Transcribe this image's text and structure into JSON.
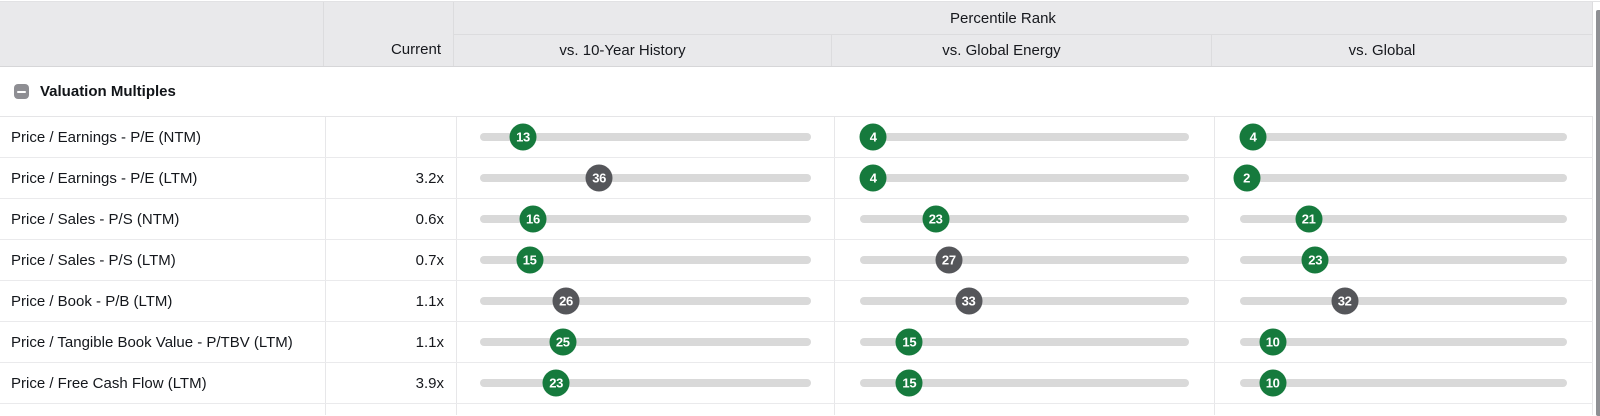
{
  "header": {
    "current_label": "Current",
    "percentile_rank_label": "Percentile Rank",
    "columns": [
      "vs. 10-Year History",
      "vs. Global Energy",
      "vs. Global"
    ]
  },
  "section": {
    "title": "Valuation Multiples",
    "collapse_icon": "minus-square-icon",
    "collapsed": false
  },
  "colors": {
    "green_badge": "#167a3d",
    "gray_badge": "#55565a",
    "track": "#d9d9d9",
    "header_bg": "#e9e9eb",
    "scrollbar": "#8f9094"
  },
  "rows": [
    {
      "label": "Price / Earnings - P/E (NTM)",
      "current": "",
      "percentiles": [
        {
          "value": 13,
          "color": "green"
        },
        {
          "value": 4,
          "color": "green"
        },
        {
          "value": 4,
          "color": "green"
        }
      ]
    },
    {
      "label": "Price / Earnings - P/E (LTM)",
      "current": "3.2x",
      "percentiles": [
        {
          "value": 36,
          "color": "gray"
        },
        {
          "value": 4,
          "color": "green"
        },
        {
          "value": 2,
          "color": "green"
        }
      ]
    },
    {
      "label": "Price / Sales - P/S (NTM)",
      "current": "0.6x",
      "percentiles": [
        {
          "value": 16,
          "color": "green"
        },
        {
          "value": 23,
          "color": "green"
        },
        {
          "value": 21,
          "color": "green"
        }
      ]
    },
    {
      "label": "Price / Sales - P/S (LTM)",
      "current": "0.7x",
      "percentiles": [
        {
          "value": 15,
          "color": "green"
        },
        {
          "value": 27,
          "color": "gray"
        },
        {
          "value": 23,
          "color": "green"
        }
      ]
    },
    {
      "label": "Price / Book - P/B (LTM)",
      "current": "1.1x",
      "percentiles": [
        {
          "value": 26,
          "color": "gray"
        },
        {
          "value": 33,
          "color": "gray"
        },
        {
          "value": 32,
          "color": "gray"
        }
      ]
    },
    {
      "label": "Price / Tangible Book Value - P/TBV (LTM)",
      "current": "1.1x",
      "percentiles": [
        {
          "value": 25,
          "color": "green"
        },
        {
          "value": 15,
          "color": "green"
        },
        {
          "value": 10,
          "color": "green"
        }
      ]
    },
    {
      "label": "Price / Free Cash Flow (LTM)",
      "current": "3.9x",
      "percentiles": [
        {
          "value": 23,
          "color": "green"
        },
        {
          "value": 15,
          "color": "green"
        },
        {
          "value": 10,
          "color": "green"
        }
      ]
    }
  ]
}
